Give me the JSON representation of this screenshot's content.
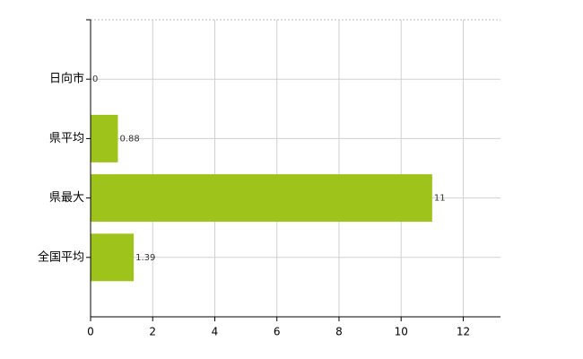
{
  "chart_data": {
    "type": "bar",
    "orientation": "horizontal",
    "categories": [
      "日向市",
      "県平均",
      "県最大",
      "全国平均"
    ],
    "values": [
      0,
      0.88,
      11,
      1.39
    ],
    "color": "#9ec41c",
    "xlim": [
      0,
      13.2
    ],
    "xticks": [
      0,
      2,
      4,
      6,
      8,
      10,
      12
    ],
    "grid": true
  }
}
